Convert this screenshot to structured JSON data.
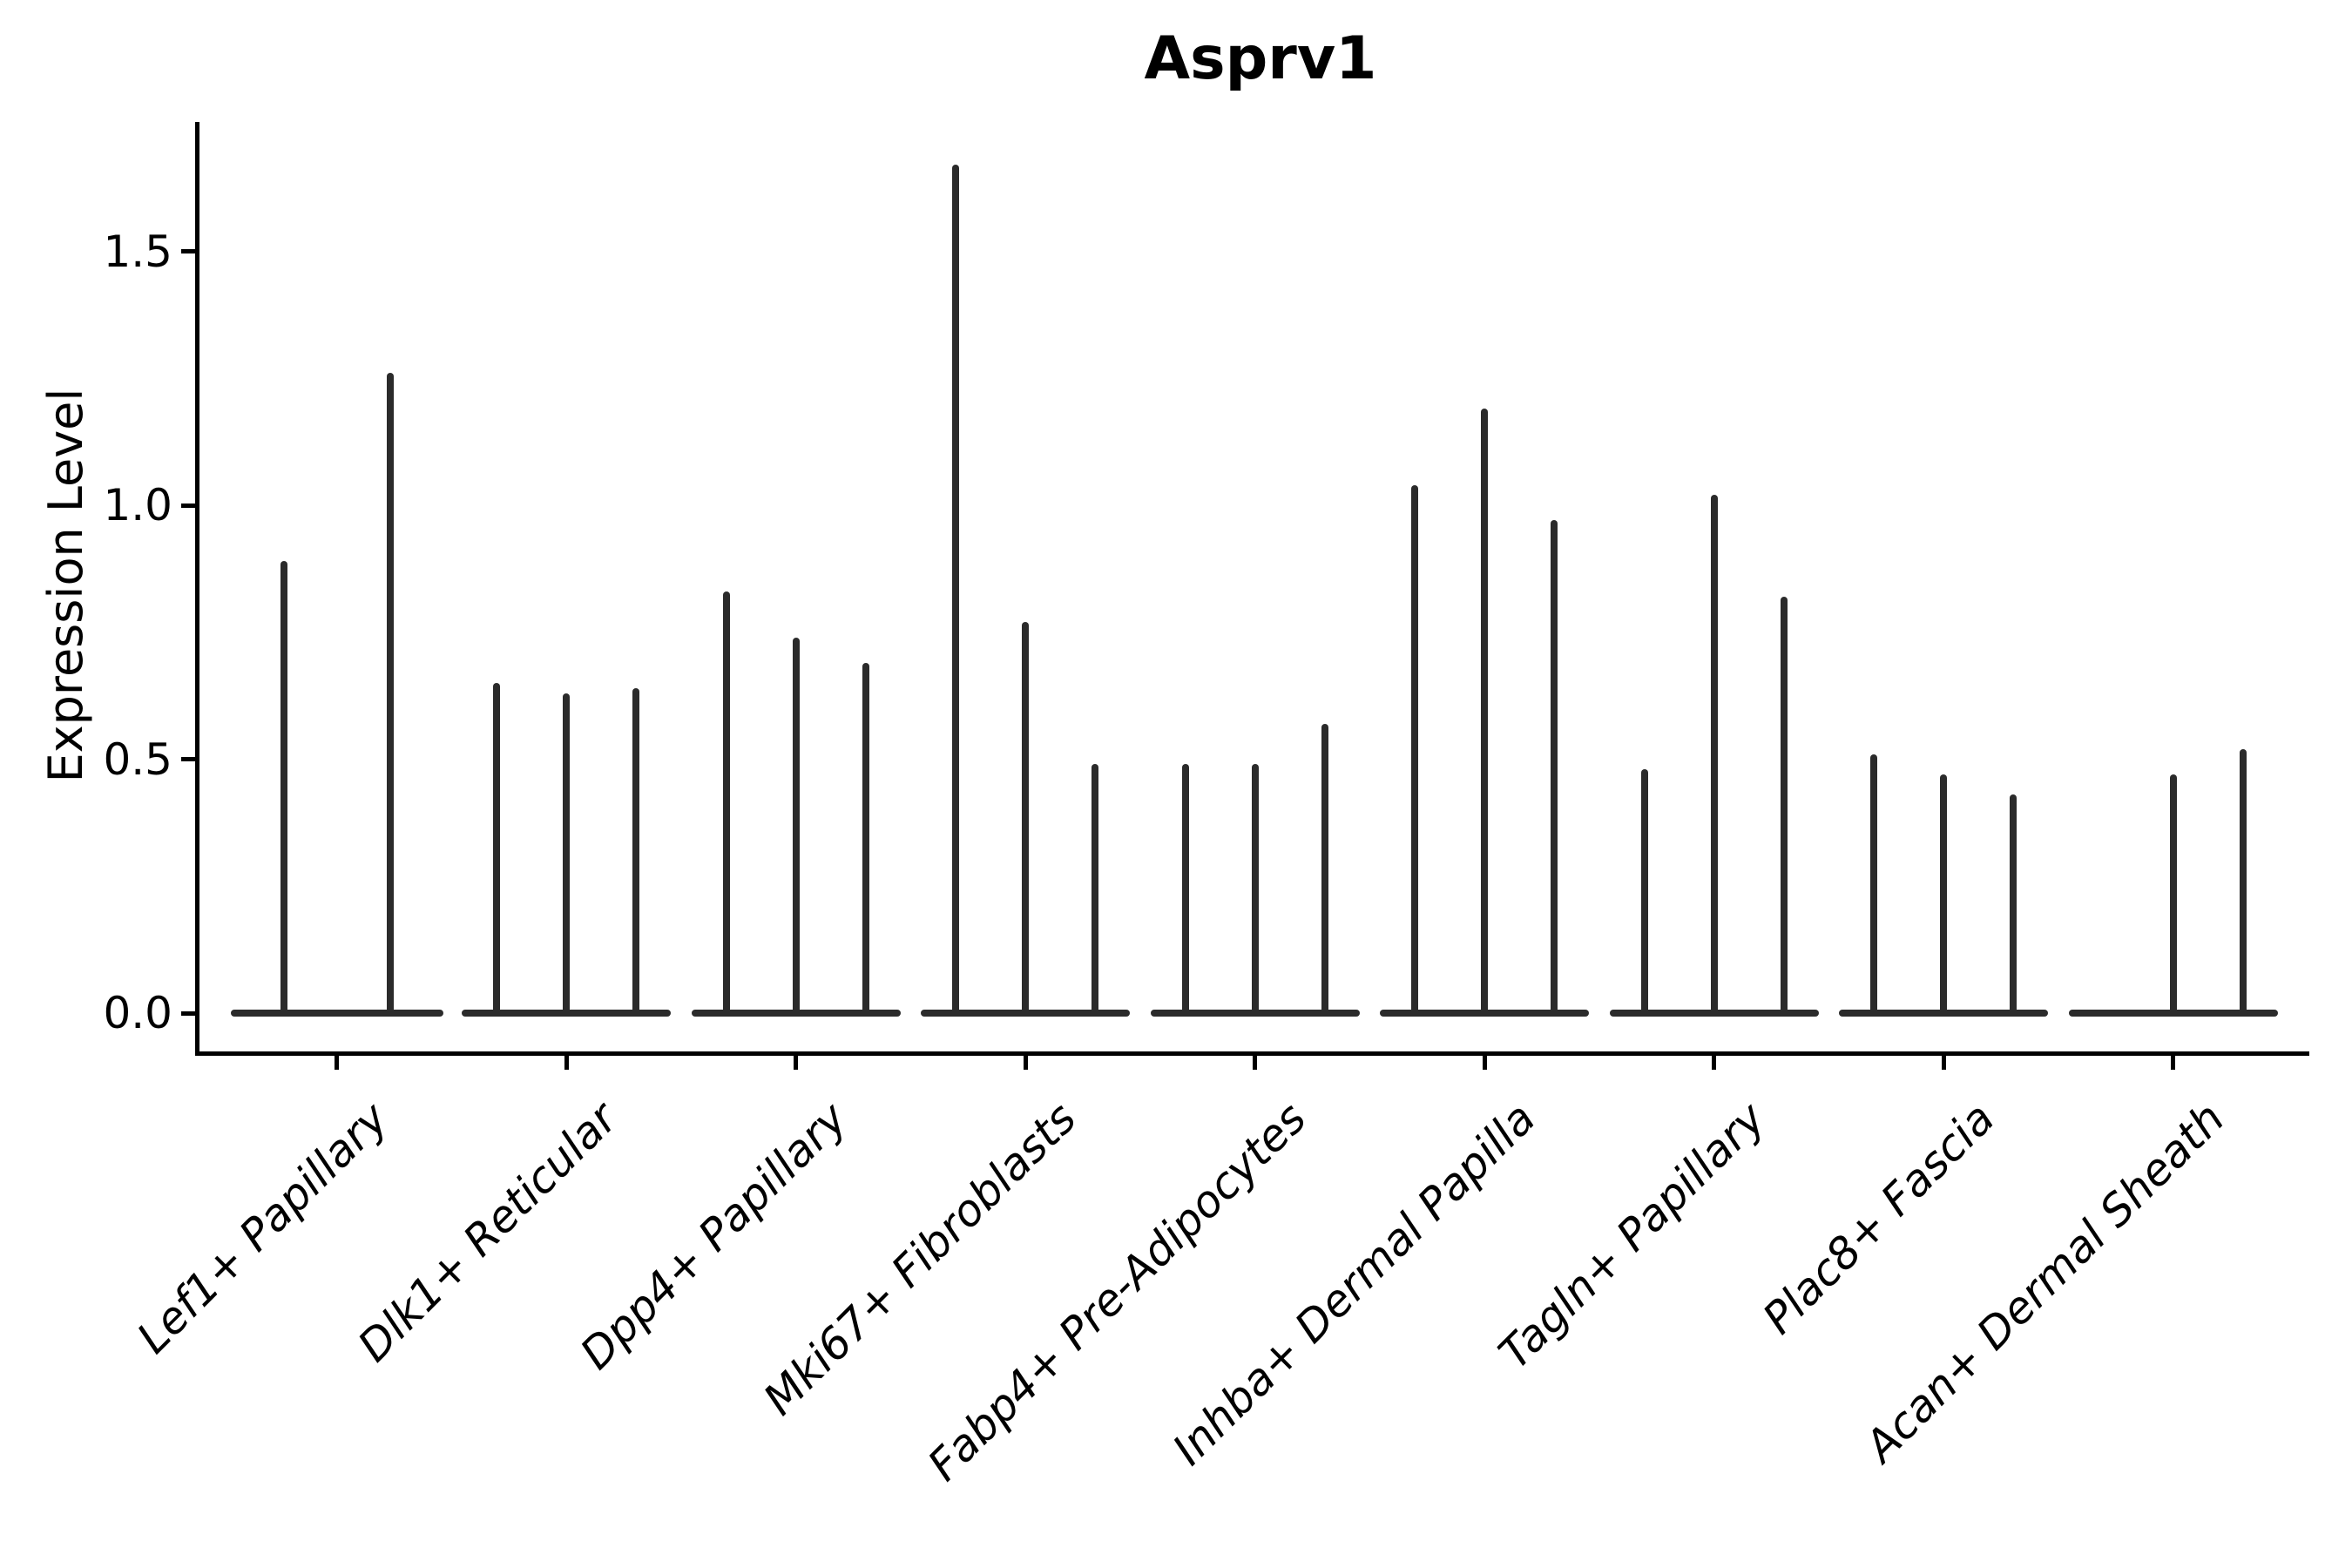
{
  "title": "Asprv1",
  "colors": {
    "violin": "#2b2b2b",
    "axis": "#000000",
    "background": "#ffffff"
  },
  "chart_data": {
    "type": "violin",
    "title": "Asprv1",
    "xlabel": "",
    "ylabel": "Expression Level",
    "ytick_labels": [
      "0.0",
      "0.5",
      "1.0",
      "1.5"
    ],
    "ytick_values": [
      0.0,
      0.5,
      1.0,
      1.5
    ],
    "ylim": [
      -0.08,
      1.76
    ],
    "grid": false,
    "legend": "none",
    "style_note": "Seurat-style split violin plot; each cell-type group holds 2-3 needle-thin violins collapsed to a flat bar at 0 with a thin spike rising to the max expression value",
    "categories": [
      "Lef1+ Papillary",
      "Dlk1+ Reticular",
      "Dpp4+ Papillary",
      "Mki67+ Fibroblasts",
      "Fabp4+ Pre-Adipocytes",
      "Inhba+ Dermal Papilla",
      "Tagln+ Papillary",
      "Plac8+ Fascia",
      "Acan+ Dermal Sheath"
    ],
    "groups": [
      {
        "category": "Lef1+ Papillary",
        "violin_max_values": [
          0.89,
          1.26
        ]
      },
      {
        "category": "Dlk1+ Reticular",
        "violin_max_values": [
          0.65,
          0.63,
          0.64
        ]
      },
      {
        "category": "Dpp4+ Papillary",
        "violin_max_values": [
          0.83,
          0.74,
          0.69
        ]
      },
      {
        "category": "Mki67+ Fibroblasts",
        "violin_max_values": [
          1.67,
          0.77,
          0.49
        ]
      },
      {
        "category": "Fabp4+ Pre-Adipocytes",
        "violin_max_values": [
          0.49,
          0.49,
          0.57
        ]
      },
      {
        "category": "Inhba+ Dermal Papilla",
        "violin_max_values": [
          1.04,
          1.19,
          0.97
        ]
      },
      {
        "category": "Tagln+ Papillary",
        "violin_max_values": [
          0.48,
          1.02,
          0.82
        ]
      },
      {
        "category": "Plac8+ Fascia",
        "violin_max_values": [
          0.51,
          0.47,
          0.43
        ]
      },
      {
        "category": "Acan+ Dermal Sheath",
        "violin_max_values": [
          0.0,
          0.47,
          0.52
        ]
      }
    ]
  }
}
